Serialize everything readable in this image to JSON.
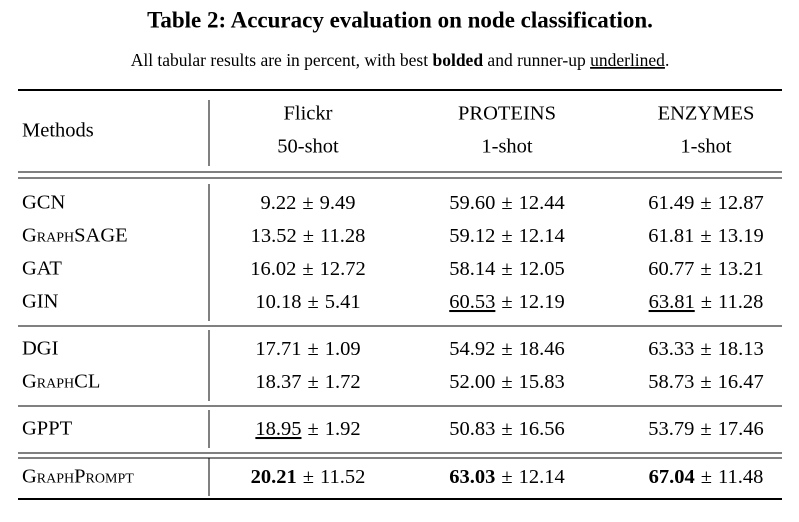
{
  "title": "Table 2: Accuracy evaluation on node classification.",
  "caption": {
    "parts": [
      {
        "text": "All tabular results are in percent, with best "
      },
      {
        "text": "bolded",
        "emphasis": "bold"
      },
      {
        "text": " and runner-up "
      },
      {
        "text": "underlined",
        "emphasis": "underline"
      },
      {
        "text": "."
      }
    ]
  },
  "table": {
    "separator": "±",
    "header": {
      "method": "Methods",
      "columns": [
        {
          "dataset": "Flickr",
          "shot": "50-shot"
        },
        {
          "dataset": "PROTEINS",
          "shot": "1-shot"
        },
        {
          "dataset": "ENZYMES",
          "shot": "1-shot"
        }
      ]
    },
    "groups": [
      [
        {
          "method": "GCN",
          "cells": [
            {
              "mean": "9.22",
              "std": "9.49"
            },
            {
              "mean": "59.60",
              "std": "12.44"
            },
            {
              "mean": "61.49",
              "std": "12.87"
            }
          ]
        },
        {
          "method": "GraphSAGE",
          "cells": [
            {
              "mean": "13.52",
              "std": "11.28"
            },
            {
              "mean": "59.12",
              "std": "12.14"
            },
            {
              "mean": "61.81",
              "std": "13.19"
            }
          ]
        },
        {
          "method": "GAT",
          "cells": [
            {
              "mean": "16.02",
              "std": "12.72"
            },
            {
              "mean": "58.14",
              "std": "12.05"
            },
            {
              "mean": "60.77",
              "std": "13.21"
            }
          ]
        },
        {
          "method": "GIN",
          "cells": [
            {
              "mean": "10.18",
              "std": "5.41"
            },
            {
              "mean": "60.53",
              "std": "12.19",
              "emphasis": "underline"
            },
            {
              "mean": "63.81",
              "std": "11.28",
              "emphasis": "underline"
            }
          ]
        }
      ],
      [
        {
          "method": "DGI",
          "cells": [
            {
              "mean": "17.71",
              "std": "1.09"
            },
            {
              "mean": "54.92",
              "std": "18.46"
            },
            {
              "mean": "63.33",
              "std": "18.13"
            }
          ]
        },
        {
          "method": "GraphCL",
          "cells": [
            {
              "mean": "18.37",
              "std": "1.72"
            },
            {
              "mean": "52.00",
              "std": "15.83"
            },
            {
              "mean": "58.73",
              "std": "16.47"
            }
          ]
        }
      ],
      [
        {
          "method": "GPPT",
          "cells": [
            {
              "mean": "18.95",
              "std": "1.92",
              "emphasis": "underline"
            },
            {
              "mean": "50.83",
              "std": "16.56"
            },
            {
              "mean": "53.79",
              "std": "17.46"
            }
          ]
        }
      ],
      [
        {
          "method": "GraphPrompt",
          "cells": [
            {
              "mean": "20.21",
              "std": "11.52",
              "emphasis": "bold"
            },
            {
              "mean": "63.03",
              "std": "12.14",
              "emphasis": "bold"
            },
            {
              "mean": "67.04",
              "std": "11.48",
              "emphasis": "bold"
            }
          ]
        }
      ]
    ]
  }
}
